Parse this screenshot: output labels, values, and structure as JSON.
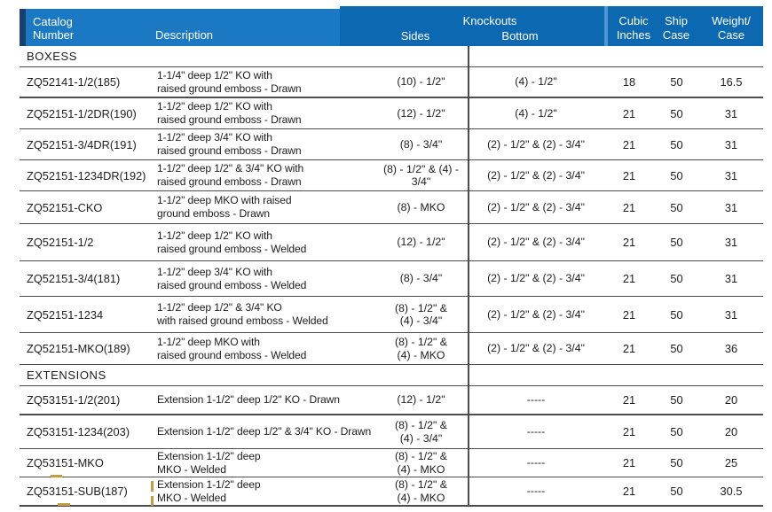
{
  "table": {
    "header": {
      "catalog_line1": "Catalog",
      "catalog_line2": "Number",
      "description": "Description",
      "knockouts": "Knockouts",
      "sides": "Sides",
      "bottom": "Bottom",
      "cubic_line1": "Cubic",
      "cubic_line2": "Inches",
      "ship_line1": "Ship",
      "ship_line2": "Case",
      "weight_line1": "Weight/",
      "weight_line2": "Case"
    },
    "colors": {
      "header_left_bg": "#1b79c4",
      "header_right_bg": "#0d68b2",
      "header_gap_bg": "#4f96d0",
      "header_edge_bg": "#1c3e6e",
      "header_text": "#ffffff",
      "row_line": "#4d4d4d",
      "text": "#1c1c1c",
      "mark": "#c79b3e"
    },
    "rows": [
      {
        "type": "section",
        "label": "BOXESS"
      },
      {
        "type": "item",
        "catalog": "ZQ52141-1/2(185)",
        "desc": [
          "1-1/4\" deep 1/2\" KO with",
          "raised ground emboss - Drawn"
        ],
        "sides": [
          "(10) - 1/2\""
        ],
        "bottom": "(4) - 1/2\"",
        "cubic": "18",
        "ship": "50",
        "weight": "16.5"
      },
      {
        "type": "item",
        "catalog": "ZQ52151-1/2DR(190)",
        "desc": [
          "1-1/2\" deep 1/2\" KO with",
          "raised ground emboss - Drawn"
        ],
        "sides": [
          "(12) - 1/2\""
        ],
        "bottom": "(4) - 1/2\"",
        "cubic": "21",
        "ship": "50",
        "weight": "31"
      },
      {
        "type": "item",
        "catalog": "ZQ52151-3/4DR(191)",
        "desc": [
          "1-1/2\" deep 3/4\" KO with",
          "raised ground emboss - Drawn"
        ],
        "sides": [
          "(8) - 3/4\""
        ],
        "bottom": "(2) - 1/2\" & (2) - 3/4\"",
        "cubic": "21",
        "ship": "50",
        "weight": "31"
      },
      {
        "type": "item",
        "catalog": "ZQ52151-1234DR(192)",
        "desc": [
          "1-1/2\" deep 1/2\" & 3/4\" KO with",
          "raised ground emboss - Drawn"
        ],
        "sides": [
          "(8) - 1/2\" & (4) - 3/4\""
        ],
        "bottom": "(2) - 1/2\" & (2) - 3/4\"",
        "cubic": "21",
        "ship": "50",
        "weight": "31"
      },
      {
        "type": "item",
        "catalog": "ZQ52151-CKO",
        "desc": [
          "1-1/2\" deep MKO with raised",
          "ground emboss - Drawn"
        ],
        "sides": [
          "(8) - MKO"
        ],
        "bottom": "(2) - 1/2\" & (2) - 3/4\"",
        "cubic": "21",
        "ship": "50",
        "weight": "31"
      },
      {
        "type": "item",
        "catalog": "ZQ52151-1/2",
        "desc": [
          "1-1/2\" deep 1/2\" KO with",
          "raised ground emboss - Welded"
        ],
        "sides": [
          "(12) - 1/2\""
        ],
        "bottom": "(2) - 1/2\" & (2) - 3/4\"",
        "cubic": "21",
        "ship": "50",
        "weight": "31"
      },
      {
        "type": "item",
        "catalog": "ZQ52151-3/4(181)",
        "desc": [
          "1-1/2\" deep 3/4\" KO with",
          "raised ground emboss - Welded"
        ],
        "sides": [
          "(8) - 3/4\""
        ],
        "bottom": "(2) - 1/2\" & (2) - 3/4\"",
        "cubic": "21",
        "ship": "50",
        "weight": "31"
      },
      {
        "type": "item",
        "catalog": "ZQ52151-1234",
        "desc": [
          "1-1/2\" deep 1/2\" & 3/4\"  KO",
          "with raised ground emboss - Welded"
        ],
        "sides": [
          "(8) - 1/2\" &",
          "(4) - 3/4\""
        ],
        "bottom": "(2) - 1/2\" & (2) - 3/4\"",
        "cubic": "21",
        "ship": "50",
        "weight": "31"
      },
      {
        "type": "item",
        "catalog": "ZQ52151-MKO(189)",
        "desc": [
          "1-1/2\" deep MKO with",
          "raised ground emboss - Welded"
        ],
        "sides": [
          "(8) - 1/2\" &",
          "(4) - MKO"
        ],
        "bottom": "(2) - 1/2\" & (2) - 3/4\"",
        "cubic": "21",
        "ship": "50",
        "weight": "36"
      },
      {
        "type": "section",
        "label": "EXTENSIONS"
      },
      {
        "type": "item",
        "catalog": "ZQ53151-1/2(201)",
        "desc": [
          "Extension 1-1/2\" deep 1/2\" KO - Drawn"
        ],
        "sides": [
          "(12) - 1/2\""
        ],
        "bottom": "-----",
        "cubic": "21",
        "ship": "50",
        "weight": "20"
      },
      {
        "type": "item",
        "catalog": "ZQ53151-1234(203)",
        "desc": [
          "Extension 1-1/2\" deep 1/2\" & 3/4\" KO - Drawn"
        ],
        "sides": [
          "(8) - 1/2\" &",
          "(4) - 3/4\""
        ],
        "bottom": "-----",
        "cubic": "21",
        "ship": "50",
        "weight": "20"
      },
      {
        "type": "item",
        "catalog": "ZQ53151-MKO",
        "desc": [
          "Extension 1-1/2\" deep",
          "MKO - Welded"
        ],
        "sides": [
          "(8) - 1/2\" &",
          "(4) - MKO"
        ],
        "bottom": "-----",
        "cubic": "21",
        "ship": "50",
        "weight": "25"
      },
      {
        "type": "item",
        "catalog": "ZQ53151-SUB(187)",
        "desc": [
          "Extension 1-1/2\" deep",
          "MKO - Welded"
        ],
        "sides": [
          "(8) - 1/2\" &",
          "(4) - MKO"
        ],
        "bottom": "-----",
        "cubic": "21",
        "ship": "50",
        "weight": "30.5"
      }
    ]
  }
}
